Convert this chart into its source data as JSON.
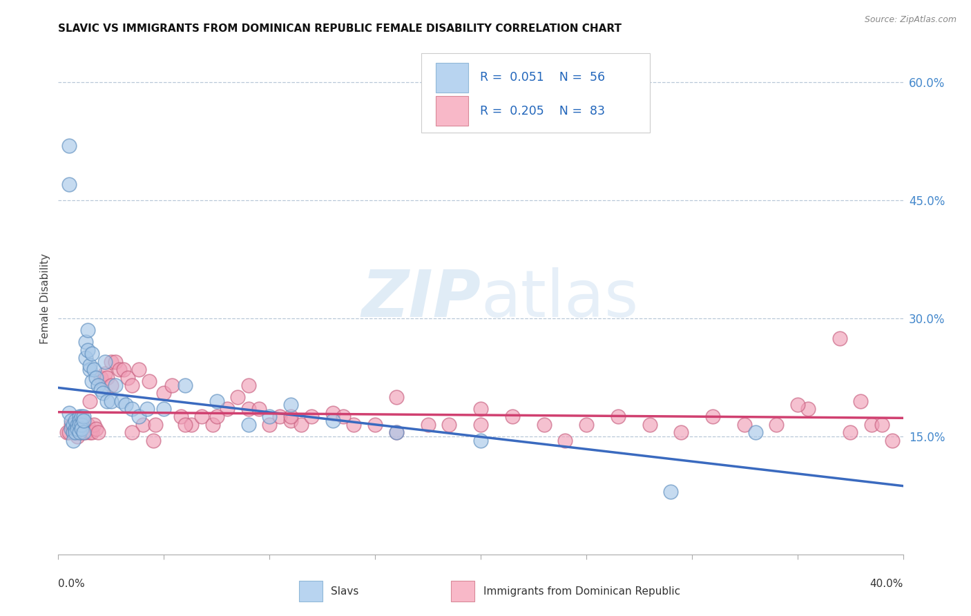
{
  "title": "SLAVIC VS IMMIGRANTS FROM DOMINICAN REPUBLIC FEMALE DISABILITY CORRELATION CHART",
  "source": "Source: ZipAtlas.com",
  "ylabel": "Female Disability",
  "y_tick_labels": [
    "15.0%",
    "30.0%",
    "45.0%",
    "60.0%"
  ],
  "y_tick_values": [
    0.15,
    0.3,
    0.45,
    0.6
  ],
  "x_range": [
    0.0,
    0.4
  ],
  "y_range": [
    0.0,
    0.65
  ],
  "slavs_color": "#a8c8e8",
  "slavs_edge_color": "#6090c0",
  "dr_color": "#f0a0b8",
  "dr_edge_color": "#c86080",
  "trend_blue": "#3a6abf",
  "trend_pink": "#d04070",
  "legend_box_blue": "#b8d4f0",
  "legend_box_pink": "#f8b8c8",
  "watermark_color": "#d8e8f8",
  "slavs_x": [
    0.005,
    0.005,
    0.005,
    0.006,
    0.006,
    0.007,
    0.007,
    0.007,
    0.008,
    0.008,
    0.008,
    0.009,
    0.009,
    0.01,
    0.01,
    0.01,
    0.01,
    0.011,
    0.011,
    0.011,
    0.012,
    0.012,
    0.012,
    0.013,
    0.013,
    0.014,
    0.014,
    0.015,
    0.015,
    0.016,
    0.016,
    0.017,
    0.018,
    0.019,
    0.02,
    0.021,
    0.022,
    0.023,
    0.025,
    0.027,
    0.03,
    0.032,
    0.035,
    0.038,
    0.042,
    0.05,
    0.06,
    0.075,
    0.09,
    0.1,
    0.11,
    0.13,
    0.16,
    0.2,
    0.29,
    0.33
  ],
  "slavs_y": [
    0.52,
    0.47,
    0.18,
    0.17,
    0.16,
    0.165,
    0.155,
    0.145,
    0.16,
    0.17,
    0.155,
    0.165,
    0.16,
    0.175,
    0.17,
    0.165,
    0.155,
    0.175,
    0.165,
    0.16,
    0.175,
    0.155,
    0.17,
    0.27,
    0.25,
    0.285,
    0.26,
    0.235,
    0.24,
    0.255,
    0.22,
    0.235,
    0.225,
    0.215,
    0.21,
    0.205,
    0.245,
    0.195,
    0.195,
    0.215,
    0.195,
    0.19,
    0.185,
    0.175,
    0.185,
    0.185,
    0.215,
    0.195,
    0.165,
    0.175,
    0.19,
    0.17,
    0.155,
    0.145,
    0.08,
    0.155
  ],
  "dr_x": [
    0.004,
    0.005,
    0.006,
    0.007,
    0.007,
    0.008,
    0.008,
    0.009,
    0.01,
    0.01,
    0.011,
    0.012,
    0.012,
    0.013,
    0.014,
    0.015,
    0.016,
    0.017,
    0.018,
    0.019,
    0.02,
    0.022,
    0.023,
    0.025,
    0.027,
    0.029,
    0.031,
    0.033,
    0.035,
    0.038,
    0.04,
    0.043,
    0.046,
    0.05,
    0.054,
    0.058,
    0.063,
    0.068,
    0.073,
    0.08,
    0.085,
    0.09,
    0.095,
    0.1,
    0.105,
    0.11,
    0.115,
    0.12,
    0.13,
    0.14,
    0.15,
    0.16,
    0.175,
    0.185,
    0.2,
    0.215,
    0.23,
    0.25,
    0.265,
    0.28,
    0.295,
    0.31,
    0.325,
    0.34,
    0.355,
    0.37,
    0.38,
    0.385,
    0.39,
    0.015,
    0.025,
    0.035,
    0.045,
    0.06,
    0.075,
    0.09,
    0.11,
    0.135,
    0.16,
    0.2,
    0.24,
    0.35,
    0.375,
    0.395
  ],
  "dr_y": [
    0.155,
    0.155,
    0.165,
    0.155,
    0.16,
    0.155,
    0.165,
    0.15,
    0.155,
    0.165,
    0.155,
    0.155,
    0.16,
    0.155,
    0.165,
    0.155,
    0.155,
    0.165,
    0.16,
    0.155,
    0.225,
    0.23,
    0.225,
    0.245,
    0.245,
    0.235,
    0.235,
    0.225,
    0.215,
    0.235,
    0.165,
    0.22,
    0.165,
    0.205,
    0.215,
    0.175,
    0.165,
    0.175,
    0.165,
    0.185,
    0.2,
    0.185,
    0.185,
    0.165,
    0.175,
    0.17,
    0.165,
    0.175,
    0.18,
    0.165,
    0.165,
    0.2,
    0.165,
    0.165,
    0.165,
    0.175,
    0.165,
    0.165,
    0.175,
    0.165,
    0.155,
    0.175,
    0.165,
    0.165,
    0.185,
    0.275,
    0.195,
    0.165,
    0.165,
    0.195,
    0.215,
    0.155,
    0.145,
    0.165,
    0.175,
    0.215,
    0.175,
    0.175,
    0.155,
    0.185,
    0.145,
    0.19,
    0.155,
    0.145
  ]
}
